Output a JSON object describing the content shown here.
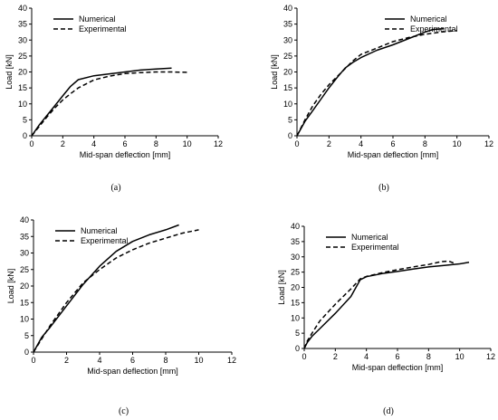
{
  "chart_data": [
    {
      "id": "a",
      "panel_label": "(a)",
      "type": "line",
      "xlabel": "Mid-span deflection [mm]",
      "ylabel": "Load [kN]",
      "xlim": [
        0,
        12
      ],
      "ylim": [
        0,
        40
      ],
      "xticks": [
        0,
        2,
        4,
        6,
        8,
        10,
        12
      ],
      "yticks": [
        0,
        5,
        10,
        15,
        20,
        25,
        30,
        35,
        40
      ],
      "legend_position": "top-left",
      "series": [
        {
          "name": "Numerical",
          "style": "solid",
          "x": [
            0,
            0.5,
            1.0,
            1.5,
            2.0,
            2.5,
            3.0,
            4.0,
            5.0,
            6.0,
            7.0,
            8.0,
            9.0
          ],
          "y": [
            0,
            3.5,
            6.5,
            9.5,
            12.5,
            15.5,
            17.6,
            18.8,
            19.4,
            20.0,
            20.6,
            20.9,
            21.2
          ]
        },
        {
          "name": "Experimental",
          "style": "dashed",
          "x": [
            0,
            0.5,
            1.0,
            1.5,
            2.0,
            2.5,
            3.0,
            4.0,
            5.0,
            6.0,
            7.0,
            8.0,
            9.0,
            10.0
          ],
          "y": [
            0,
            3.0,
            6.0,
            8.8,
            11.2,
            13.2,
            15.0,
            17.5,
            18.7,
            19.5,
            19.8,
            20.0,
            20.0,
            19.9
          ]
        }
      ]
    },
    {
      "id": "b",
      "panel_label": "(b)",
      "type": "line",
      "xlabel": "Mid-span deflection [mm]",
      "ylabel": "Load [kN]",
      "xlim": [
        0,
        12
      ],
      "ylim": [
        0,
        40
      ],
      "xticks": [
        0,
        2,
        4,
        6,
        8,
        10,
        12
      ],
      "yticks": [
        0,
        5,
        10,
        15,
        20,
        25,
        30,
        35,
        40
      ],
      "legend_position": "top-right",
      "series": [
        {
          "name": "Numerical",
          "style": "solid",
          "x": [
            0,
            0.5,
            1.0,
            1.5,
            2.0,
            2.5,
            3.0,
            3.5,
            4.0,
            5.0,
            6.0,
            7.0,
            8.0,
            8.5,
            9.2
          ],
          "y": [
            0,
            4.5,
            8.0,
            11.5,
            15.0,
            18.2,
            21.2,
            23.0,
            24.5,
            26.8,
            28.5,
            30.5,
            32.5,
            33.3,
            33.6
          ]
        },
        {
          "name": "Experimental",
          "style": "dashed",
          "x": [
            0,
            0.5,
            1.0,
            1.5,
            2.0,
            2.5,
            3.0,
            3.5,
            4.0,
            5.0,
            6.0,
            7.0,
            8.0,
            9.0,
            10.0
          ],
          "y": [
            0,
            5.0,
            9.5,
            13.0,
            16.0,
            18.5,
            21.0,
            23.5,
            25.5,
            27.5,
            29.5,
            30.8,
            31.8,
            32.5,
            33.0
          ]
        }
      ]
    },
    {
      "id": "c",
      "panel_label": "(c)",
      "type": "line",
      "xlabel": "Mid-span deflection [mm]",
      "ylabel": "Load [kN]",
      "xlim": [
        0,
        12
      ],
      "ylim": [
        0,
        40
      ],
      "xticks": [
        0,
        2,
        4,
        6,
        8,
        10,
        12
      ],
      "yticks": [
        0,
        5,
        10,
        15,
        20,
        25,
        30,
        35,
        40
      ],
      "legend_position": "top-left",
      "series": [
        {
          "name": "Numerical",
          "style": "solid",
          "x": [
            0,
            0.5,
            1.0,
            2.0,
            3.0,
            4.0,
            5.0,
            6.0,
            7.0,
            8.0,
            8.8
          ],
          "y": [
            0,
            4.5,
            7.5,
            14.0,
            20.5,
            26.0,
            30.5,
            33.5,
            35.5,
            37.0,
            38.5
          ]
        },
        {
          "name": "Experimental",
          "style": "dashed",
          "x": [
            0,
            0.5,
            1.0,
            2.0,
            3.0,
            4.0,
            5.0,
            6.0,
            7.0,
            8.0,
            9.0,
            10.0
          ],
          "y": [
            0,
            4.0,
            8.0,
            15.0,
            21.0,
            25.0,
            28.5,
            31.0,
            33.0,
            34.5,
            36.0,
            37.0
          ]
        }
      ]
    },
    {
      "id": "d",
      "panel_label": "(d)",
      "type": "line",
      "xlabel": "Mid-span deflection [mm]",
      "ylabel": "Load [kN]",
      "xlim": [
        0,
        12
      ],
      "ylim": [
        0,
        40
      ],
      "xticks": [
        0,
        2,
        4,
        6,
        8,
        10,
        12
      ],
      "yticks": [
        0,
        5,
        10,
        15,
        20,
        25,
        30,
        35,
        40
      ],
      "legend_position": "top-left",
      "series": [
        {
          "name": "Numerical",
          "style": "solid",
          "x": [
            0,
            0.2,
            0.5,
            1.0,
            2.0,
            3.0,
            3.6,
            4.0,
            5.0,
            6.0,
            7.0,
            8.0,
            9.0,
            10.0,
            10.6
          ],
          "y": [
            0,
            2.0,
            4.0,
            6.5,
            11.5,
            17.0,
            22.5,
            23.5,
            24.5,
            25.2,
            26.0,
            26.7,
            27.2,
            27.7,
            28.2
          ]
        },
        {
          "name": "Experimental",
          "style": "dashed",
          "x": [
            0,
            0.2,
            0.5,
            1.0,
            2.0,
            3.0,
            3.6,
            4.0,
            5.0,
            6.0,
            7.0,
            8.0,
            8.8,
            9.3,
            9.6
          ],
          "y": [
            0,
            2.5,
            5.0,
            9.0,
            14.5,
            19.5,
            22.8,
            23.6,
            24.8,
            25.8,
            26.7,
            27.5,
            28.4,
            28.6,
            28.0
          ]
        }
      ]
    }
  ]
}
